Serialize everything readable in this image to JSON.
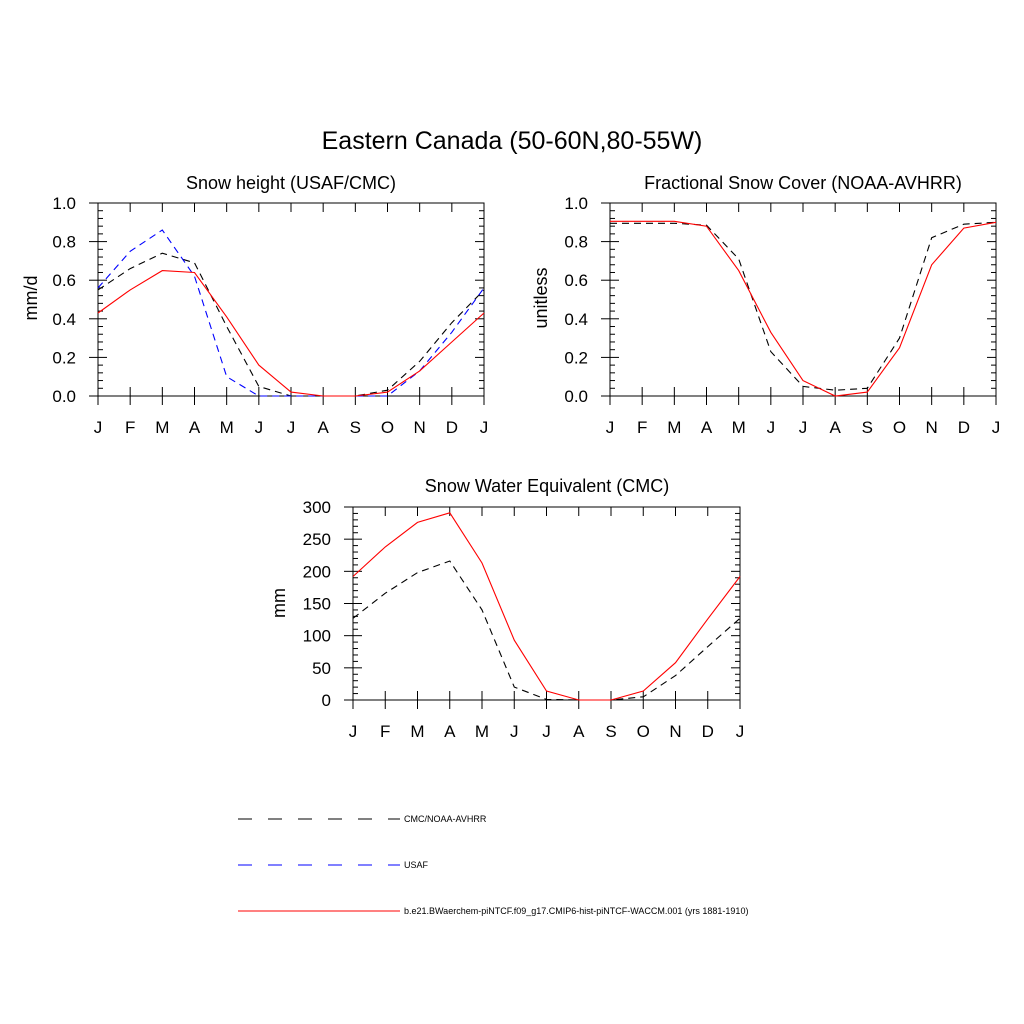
{
  "figure": {
    "title": "Eastern Canada (50-60N,80-55W)"
  },
  "chart_data": [
    {
      "type": "line",
      "title": "Snow height (USAF/CMC)",
      "xlabel": "",
      "ylabel": "mm/d",
      "categories": [
        "J",
        "F",
        "M",
        "A",
        "M",
        "J",
        "J",
        "A",
        "S",
        "O",
        "N",
        "D",
        "J"
      ],
      "ylim": [
        0,
        1.0
      ],
      "yticks": [
        "0.0",
        "0.2",
        "0.4",
        "0.6",
        "0.8",
        "1.0"
      ],
      "grid": false,
      "series": [
        {
          "name": "CMC/NOAA-AVHRR",
          "color": "#000000",
          "dash": "dashed",
          "values": [
            0.55,
            0.66,
            0.74,
            0.69,
            0.36,
            0.05,
            0.0,
            0.0,
            0.0,
            0.03,
            0.18,
            0.38,
            0.55
          ]
        },
        {
          "name": "USAF",
          "color": "#0000ff",
          "dash": "dashed",
          "values": [
            0.56,
            0.75,
            0.86,
            0.62,
            0.1,
            0.0,
            0.0,
            0.0,
            0.0,
            0.0,
            0.13,
            0.33,
            0.56
          ]
        },
        {
          "name": "b.e21.BWaerchem-piNTCF.f09_g17.CMIP6-hist-piNTCF-WACCM.001 (yrs 1881-1910)",
          "color": "#ff0000",
          "dash": "solid",
          "values": [
            0.43,
            0.55,
            0.65,
            0.64,
            0.41,
            0.16,
            0.02,
            0.0,
            0.0,
            0.02,
            0.13,
            0.28,
            0.43
          ]
        }
      ]
    },
    {
      "type": "line",
      "title": "Fractional Snow Cover (NOAA-AVHRR)",
      "xlabel": "",
      "ylabel": "unitless",
      "categories": [
        "J",
        "F",
        "M",
        "A",
        "M",
        "J",
        "J",
        "A",
        "S",
        "O",
        "N",
        "D",
        "J"
      ],
      "ylim": [
        0,
        1.0
      ],
      "yticks": [
        "0.0",
        "0.2",
        "0.4",
        "0.6",
        "0.8",
        "1.0"
      ],
      "grid": false,
      "series": [
        {
          "name": "CMC/NOAA-AVHRR",
          "color": "#000000",
          "dash": "dashed",
          "values": [
            0.895,
            0.895,
            0.895,
            0.885,
            0.71,
            0.23,
            0.05,
            0.03,
            0.04,
            0.3,
            0.82,
            0.89,
            0.9
          ]
        },
        {
          "name": "b.e21.BWaerchem-piNTCF.f09_g17.CMIP6-hist-piNTCF-WACCM.001 (yrs 1881-1910)",
          "color": "#ff0000",
          "dash": "solid",
          "values": [
            0.905,
            0.905,
            0.905,
            0.88,
            0.65,
            0.33,
            0.08,
            0.0,
            0.02,
            0.25,
            0.68,
            0.87,
            0.9
          ]
        }
      ]
    },
    {
      "type": "line",
      "title": "Snow Water Equivalent (CMC)",
      "xlabel": "",
      "ylabel": "mm",
      "categories": [
        "J",
        "F",
        "M",
        "A",
        "M",
        "J",
        "J",
        "A",
        "S",
        "O",
        "N",
        "D",
        "J"
      ],
      "ylim": [
        0,
        300
      ],
      "yticks": [
        "0",
        "50",
        "100",
        "150",
        "200",
        "250",
        "300"
      ],
      "grid": false,
      "series": [
        {
          "name": "CMC/NOAA-AVHRR",
          "color": "#000000",
          "dash": "dashed",
          "values": [
            127,
            166,
            198,
            216,
            140,
            20,
            1,
            0,
            0,
            5,
            38,
            83,
            127
          ]
        },
        {
          "name": "b.e21.BWaerchem-piNTCF.f09_g17.CMIP6-hist-piNTCF-WACCM.001 (yrs 1881-1910)",
          "color": "#ff0000",
          "dash": "solid",
          "values": [
            192,
            238,
            276,
            291,
            213,
            93,
            14,
            0,
            0,
            14,
            58,
            126,
            192
          ]
        }
      ]
    }
  ],
  "legend": {
    "placement": "bottom",
    "entries": [
      {
        "label": "CMC/NOAA-AVHRR",
        "color": "#000000",
        "dash": "dashed"
      },
      {
        "label": "USAF",
        "color": "#0000ff",
        "dash": "dashed"
      },
      {
        "label": "b.e21.BWaerchem-piNTCF.f09_g17.CMIP6-hist-piNTCF-WACCM.001 (yrs 1881-1910)",
        "color": "#ff0000",
        "dash": "solid"
      }
    ]
  }
}
